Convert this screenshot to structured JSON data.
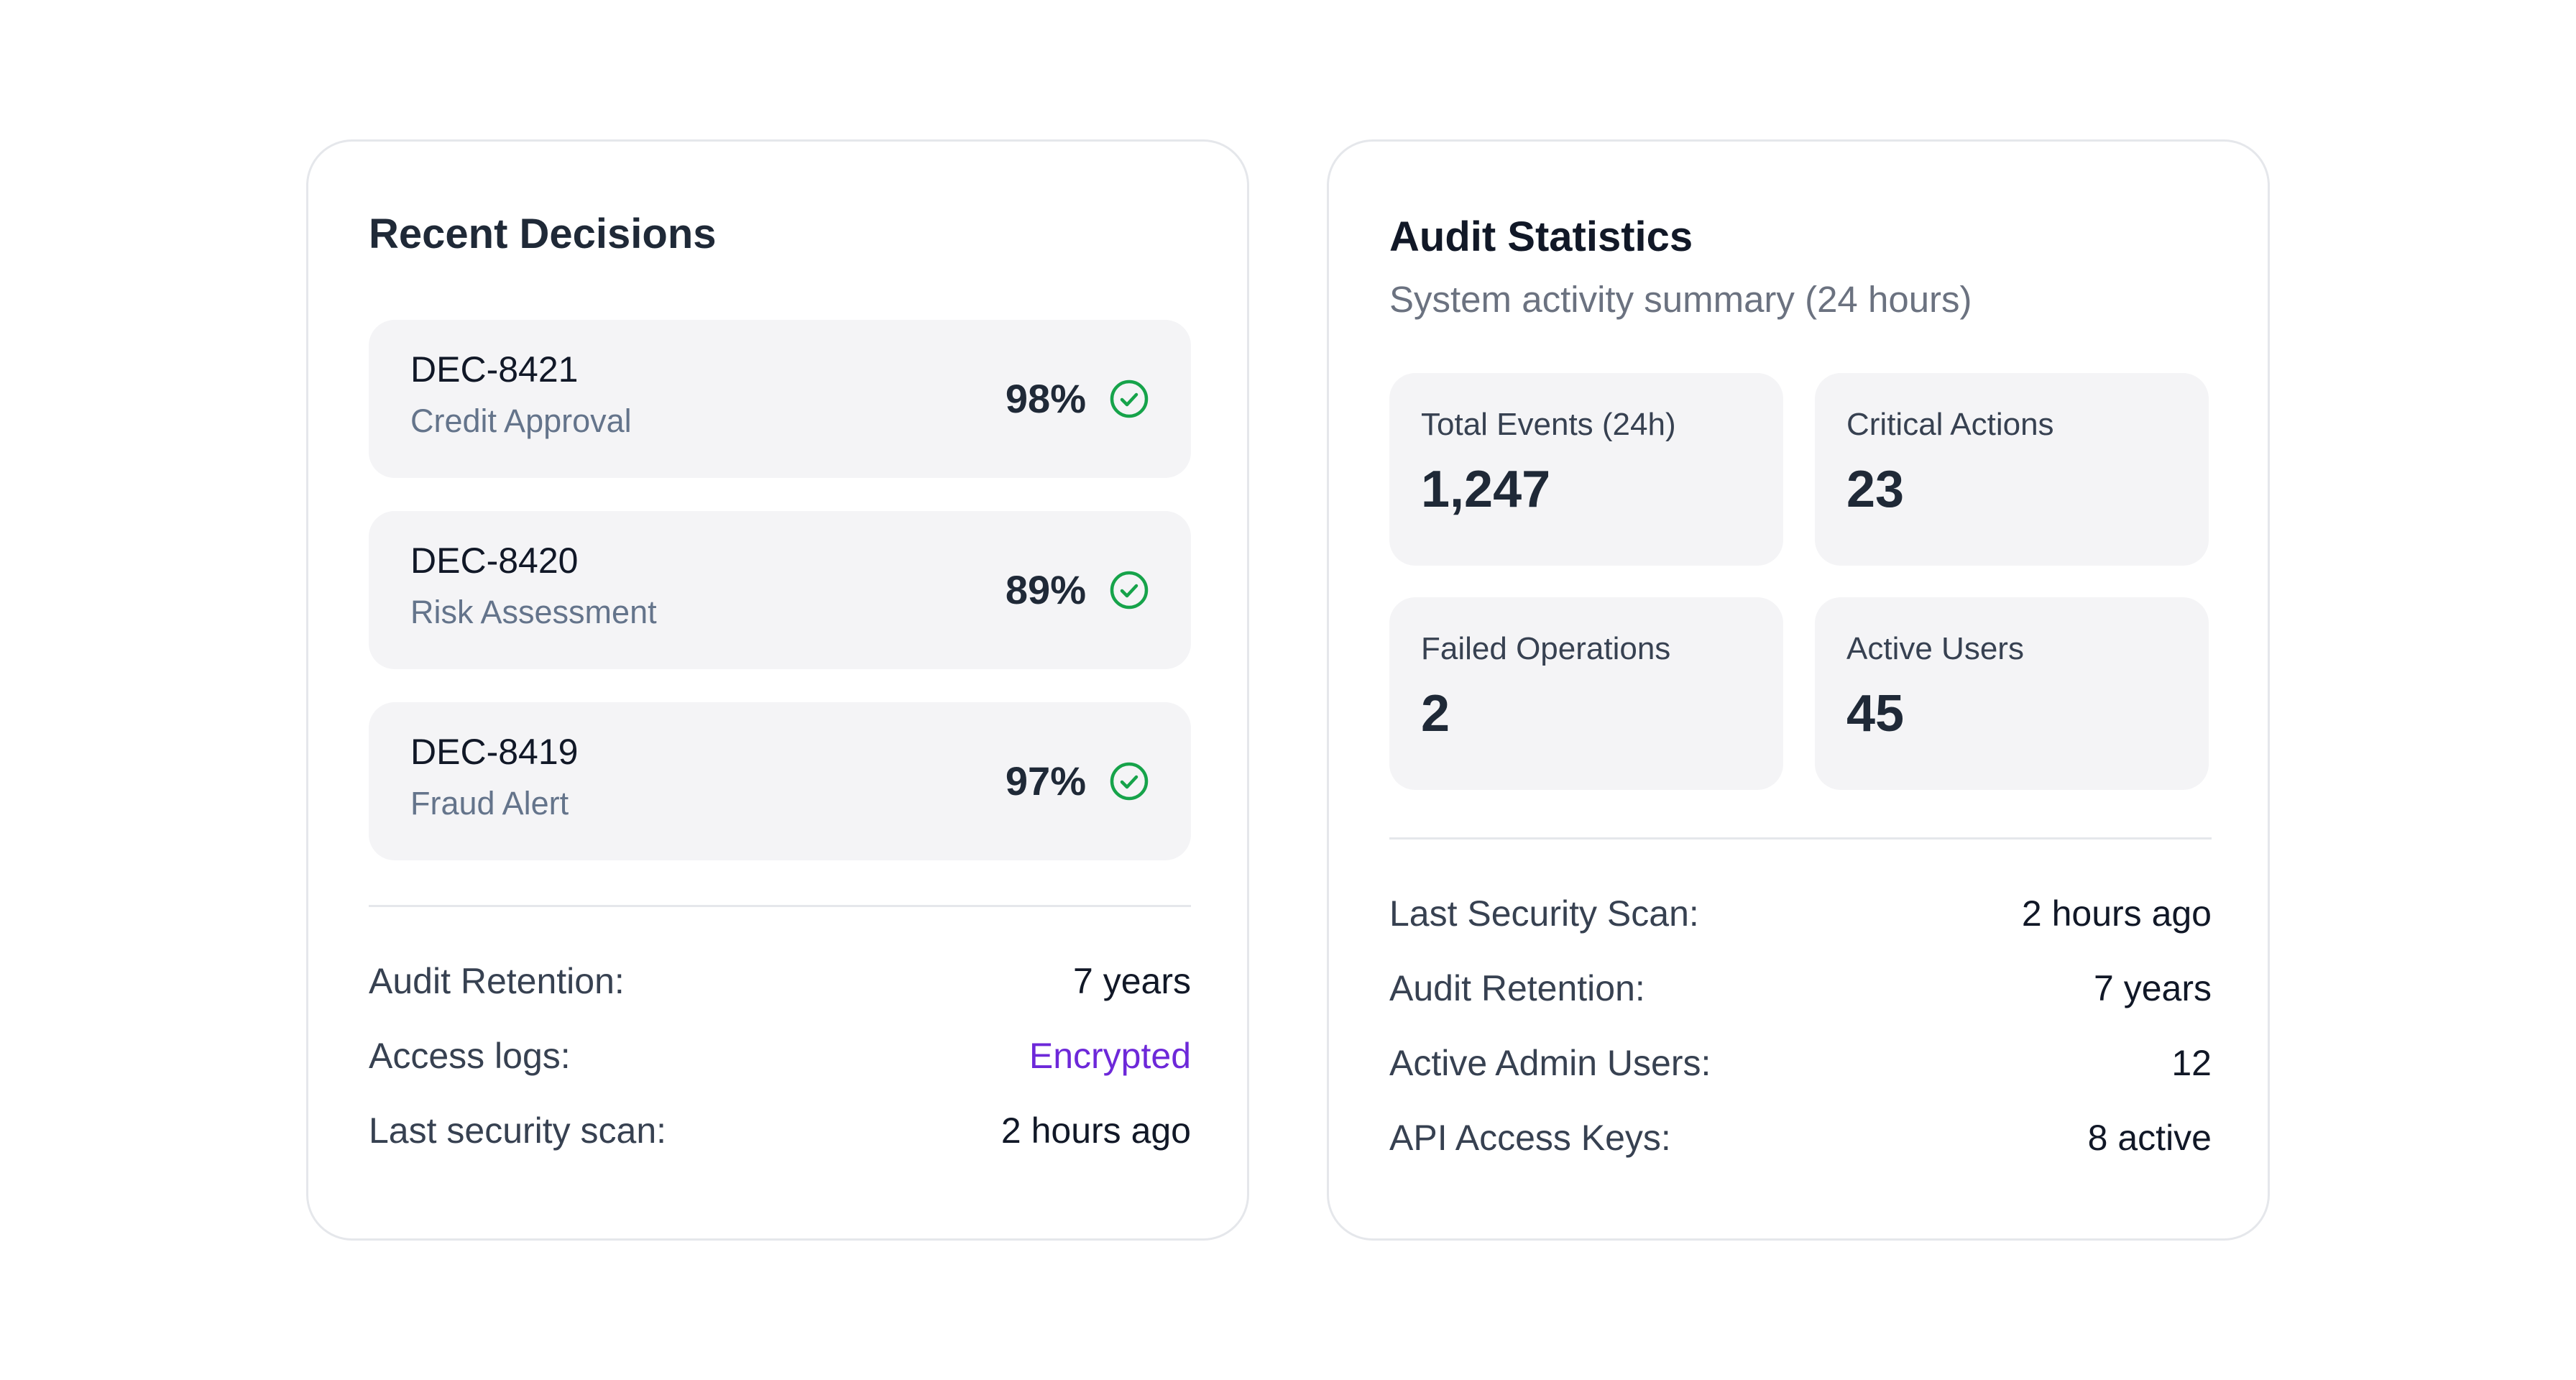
{
  "recent_decisions": {
    "title": "Recent Decisions",
    "items": [
      {
        "id": "DEC-8421",
        "type": "Credit Approval",
        "confidence": "98%",
        "status": "approved"
      },
      {
        "id": "DEC-8420",
        "type": "Risk Assessment",
        "confidence": "89%",
        "status": "approved"
      },
      {
        "id": "DEC-8419",
        "type": "Fraud Alert",
        "confidence": "97%",
        "status": "approved"
      }
    ],
    "details": [
      {
        "label": "Audit Retention:",
        "value": "7 years"
      },
      {
        "label": "Access logs:",
        "value": "Encrypted"
      },
      {
        "label": "Last security scan:",
        "value": "2 hours ago"
      }
    ]
  },
  "audit_statistics": {
    "title": "Audit Statistics",
    "subtitle": "System activity summary (24 hours)",
    "stats": [
      {
        "label": "Total Events (24h)",
        "value": "1,247"
      },
      {
        "label": "Critical Actions",
        "value": "23"
      },
      {
        "label": "Failed Operations",
        "value": "2"
      },
      {
        "label": "Active Users",
        "value": "45"
      }
    ],
    "details": [
      {
        "label": "Last Security Scan:",
        "value": "2 hours ago"
      },
      {
        "label": "Audit Retention:",
        "value": "7 years"
      },
      {
        "label": "Active Admin Users:",
        "value": "12"
      },
      {
        "label": "API Access Keys:",
        "value": "8 active"
      }
    ]
  },
  "colors": {
    "accent": "#6d28d9",
    "success": "#16a34a",
    "tile_background": "#f4f4f6",
    "card_border": "#e5e7eb"
  },
  "icons": {
    "decision_status": "check-circle-icon"
  }
}
